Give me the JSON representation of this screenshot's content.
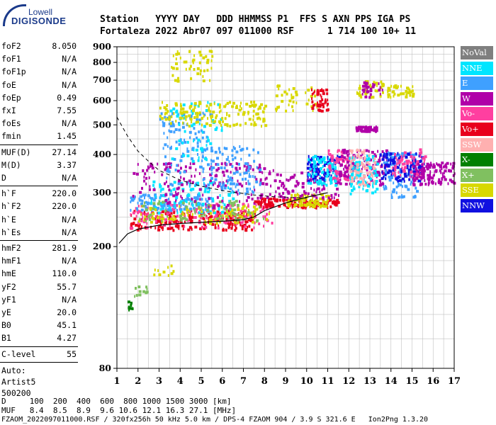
{
  "logo": {
    "top": "Lowell",
    "main": "DIGISONDE"
  },
  "header": {
    "row1": "Station   YYYY DAY   DDD HHMMSS P1  FFS S AXN PPS IGA PS",
    "row2": "Fortaleza 2022 Abr07 097 011000 RSF      1 714 100 10+ 11"
  },
  "params": {
    "group1": [
      {
        "name": "foF2",
        "value": "8.050"
      },
      {
        "name": "foF1",
        "value": "N/A"
      },
      {
        "name": "foF1p",
        "value": "N/A"
      },
      {
        "name": "foE",
        "value": "N/A"
      },
      {
        "name": "foEp",
        "value": "0.49"
      },
      {
        "name": "fxI",
        "value": "7.55"
      },
      {
        "name": "foEs",
        "value": "N/A"
      },
      {
        "name": "fmin",
        "value": "1.45"
      }
    ],
    "group2": [
      {
        "name": "MUF(D)",
        "value": "27.14"
      },
      {
        "name": "M(D)",
        "value": "3.37"
      },
      {
        "name": "D",
        "value": "N/A"
      }
    ],
    "group3": [
      {
        "name": "h`F",
        "value": "220.0"
      },
      {
        "name": "h`F2",
        "value": "220.0"
      },
      {
        "name": "h`E",
        "value": "N/A"
      },
      {
        "name": "h`Es",
        "value": "N/A"
      }
    ],
    "group4": [
      {
        "name": "hmF2",
        "value": "281.9"
      },
      {
        "name": "hmF1",
        "value": "N/A"
      },
      {
        "name": "hmE",
        "value": "110.0"
      },
      {
        "name": "yF2",
        "value": "55.7"
      },
      {
        "name": "yF1",
        "value": "N/A"
      },
      {
        "name": "yE",
        "value": "20.0"
      },
      {
        "name": "B0",
        "value": "45.1"
      },
      {
        "name": "B1",
        "value": "4.27"
      }
    ],
    "clevel": {
      "name": "C-level",
      "value": "55"
    },
    "auto": {
      "label": "Auto:",
      "artist": "Artist5",
      "code": "500200"
    }
  },
  "legend": [
    {
      "label": "NoVal",
      "color": "#7f7f7f"
    },
    {
      "label": "NNE",
      "color": "#00e5ff"
    },
    {
      "label": "E",
      "color": "#3fa0ff"
    },
    {
      "label": "W",
      "color": "#b000a8"
    },
    {
      "label": "Vo-",
      "color": "#ff3fa0"
    },
    {
      "label": "Vo+",
      "color": "#e8001c"
    },
    {
      "label": "SSW",
      "color": "#ffb0b0"
    },
    {
      "label": "X-",
      "color": "#008000"
    },
    {
      "label": "X+",
      "color": "#80c060"
    },
    {
      "label": "SSE",
      "color": "#d8d800"
    },
    {
      "label": "NNW",
      "color": "#1010e0"
    }
  ],
  "chart_data": {
    "type": "scatter",
    "xlim": [
      1,
      17
    ],
    "ylim": [
      80,
      900
    ],
    "y_scale": "log",
    "xticks": [
      "1",
      "2",
      "3",
      "4",
      "5",
      "6",
      "7",
      "8",
      "9",
      "10",
      "11",
      "12",
      "13",
      "14",
      "15",
      "16",
      "17"
    ],
    "yticks": [
      "80",
      "200",
      "300",
      "400",
      "500",
      "600",
      "700",
      "800",
      "900"
    ],
    "ytick_values": [
      80,
      200,
      300,
      400,
      500,
      600,
      700,
      800,
      900
    ],
    "grid": true,
    "clusters": [
      {
        "series": "Vo+",
        "x": [
          1.6,
          7.5
        ],
        "y": [
          228,
          265
        ],
        "n": 230
      },
      {
        "series": "Vo-",
        "x": [
          1.6,
          8.5
        ],
        "y": [
          232,
          280
        ],
        "n": 150
      },
      {
        "series": "E",
        "x": [
          1.6,
          5.5
        ],
        "y": [
          265,
          300
        ],
        "n": 130
      },
      {
        "series": "NNE",
        "x": [
          2.5,
          6.5
        ],
        "y": [
          260,
          330
        ],
        "n": 100
      },
      {
        "series": "SSE",
        "x": [
          2,
          8.2
        ],
        "y": [
          240,
          275
        ],
        "n": 90
      },
      {
        "series": "X+",
        "x": [
          2,
          8
        ],
        "y": [
          245,
          285
        ],
        "n": 70
      },
      {
        "series": "W",
        "x": [
          1.7,
          8
        ],
        "y": [
          270,
          380
        ],
        "n": 170
      },
      {
        "series": "E",
        "x": [
          5,
          7.8
        ],
        "y": [
          300,
          430
        ],
        "n": 110
      },
      {
        "series": "Vo+",
        "x": [
          7.5,
          11.5
        ],
        "y": [
          270,
          290
        ],
        "n": 130
      },
      {
        "series": "SSE",
        "x": [
          9,
          11
        ],
        "y": [
          272,
          300
        ],
        "n": 80
      },
      {
        "series": "W",
        "x": [
          8,
          11.5
        ],
        "y": [
          290,
          360
        ],
        "n": 110
      },
      {
        "series": "NNW",
        "x": [
          10,
          11.5
        ],
        "y": [
          330,
          400
        ],
        "n": 90
      },
      {
        "series": "NNE",
        "x": [
          10,
          11.4
        ],
        "y": [
          320,
          400
        ],
        "n": 80
      },
      {
        "series": "Vo-",
        "x": [
          11,
          12
        ],
        "y": [
          330,
          420
        ],
        "n": 50
      },
      {
        "series": "W",
        "x": [
          11.5,
          13.8
        ],
        "y": [
          320,
          420
        ],
        "n": 130
      },
      {
        "series": "NNE",
        "x": [
          12,
          13.3
        ],
        "y": [
          300,
          400
        ],
        "n": 100
      },
      {
        "series": "SSW",
        "x": [
          12,
          13.2
        ],
        "y": [
          320,
          420
        ],
        "n": 80
      },
      {
        "series": "E",
        "x": [
          13.6,
          15.2
        ],
        "y": [
          290,
          410
        ],
        "n": 110
      },
      {
        "series": "NNW",
        "x": [
          13.4,
          15.5
        ],
        "y": [
          330,
          410
        ],
        "n": 120
      },
      {
        "series": "Vo-",
        "x": [
          14,
          15.6
        ],
        "y": [
          340,
          420
        ],
        "n": 60
      },
      {
        "series": "W",
        "x": [
          15,
          17
        ],
        "y": [
          320,
          380
        ],
        "n": 130
      },
      {
        "series": "W",
        "x": [
          12.3,
          13.3
        ],
        "y": [
          480,
          498
        ],
        "n": 50
      },
      {
        "series": "E",
        "x": [
          3,
          5.5
        ],
        "y": [
          320,
          560
        ],
        "n": 110
      },
      {
        "series": "NNE",
        "x": [
          3.5,
          6
        ],
        "y": [
          380,
          600
        ],
        "n": 60
      },
      {
        "series": "SSE",
        "x": [
          3,
          8
        ],
        "y": [
          500,
          600
        ],
        "n": 160
      },
      {
        "series": "SSE",
        "x": [
          3.5,
          5.5
        ],
        "y": [
          700,
          880
        ],
        "n": 50
      },
      {
        "series": "SSE",
        "x": [
          8.5,
          10.5
        ],
        "y": [
          560,
          680
        ],
        "n": 40
      },
      {
        "series": "Vo+",
        "x": [
          10.2,
          11
        ],
        "y": [
          560,
          660
        ],
        "n": 50
      },
      {
        "series": "SSE",
        "x": [
          12.3,
          13.6
        ],
        "y": [
          620,
          700
        ],
        "n": 40
      },
      {
        "series": "W",
        "x": [
          12.5,
          13.6
        ],
        "y": [
          620,
          700
        ],
        "n": 30
      },
      {
        "series": "SSE",
        "x": [
          13.8,
          15
        ],
        "y": [
          620,
          680
        ],
        "n": 40
      },
      {
        "series": "X-",
        "x": [
          1.5,
          1.7
        ],
        "y": [
          125,
          135
        ],
        "n": 10
      },
      {
        "series": "X+",
        "x": [
          1.8,
          2.5
        ],
        "y": [
          135,
          150
        ],
        "n": 12
      },
      {
        "series": "SSE",
        "x": [
          2.5,
          3.8
        ],
        "y": [
          150,
          175
        ],
        "n": 10
      }
    ],
    "profile_line": {
      "x": [
        1.1,
        1.5,
        2,
        3,
        4,
        5,
        6,
        7,
        7.5,
        8,
        9,
        10,
        11
      ],
      "y": [
        205,
        220,
        228,
        235,
        238,
        240,
        242,
        245,
        250,
        262,
        278,
        290,
        300
      ]
    },
    "dashed_line": {
      "x": [
        1,
        1.5,
        2,
        2.5,
        3,
        4,
        5,
        6,
        7,
        7.5,
        8,
        8.5,
        9,
        10
      ],
      "y": [
        530,
        460,
        410,
        380,
        355,
        330,
        315,
        305,
        298,
        295,
        293,
        291,
        290,
        288
      ]
    }
  },
  "footer": {
    "d_row": "D     100  200  400  600  800 1000 1500 3000 [km]",
    "muf_row": "MUF   8.4  8.5  8.9  9.6 10.6 12.1 16.3 27.1 [MHz]",
    "file_row": "FZAOM_2022097011000.RSF / 320fx256h 50 kHz 5.0 km / DPS-4 FZAOM 904 / 3.9 S 321.6 E   Ion2Png 1.3.20"
  }
}
